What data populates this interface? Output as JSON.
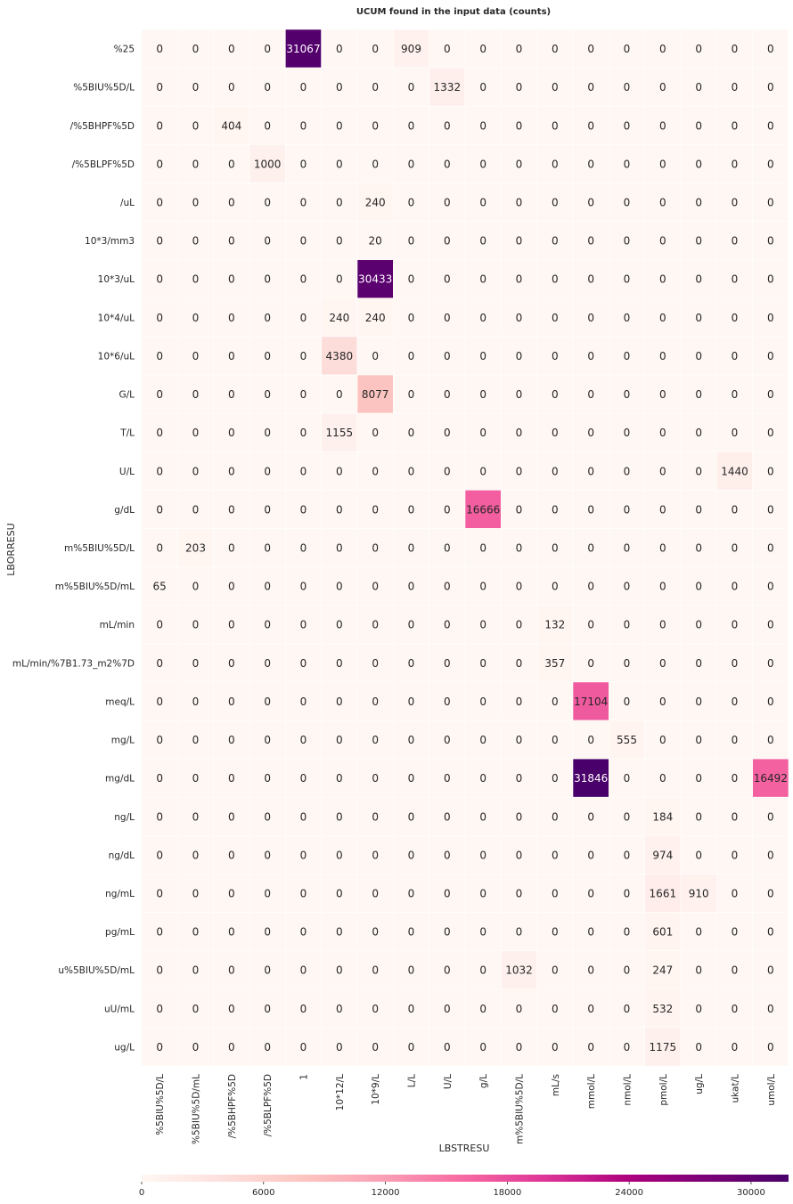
{
  "chart_data": {
    "type": "heatmap",
    "title": "UCUM found in the input data (counts)",
    "xlabel": "LBSTRESU",
    "ylabel": "LBORRESU",
    "x_categories": [
      "%5BIU%5D/L",
      "%5BIU%5D/mL",
      "/%5BHPF%5D",
      "/%5BLPF%5D",
      "1",
      "10*12/L",
      "10*9/L",
      "L/L",
      "U/L",
      "g/L",
      "m%5BIU%5D/L",
      "mL/s",
      "mmol/L",
      "nmol/L",
      "pmol/L",
      "ug/L",
      "ukat/L",
      "umol/L"
    ],
    "y_categories": [
      "%25",
      "%5BIU%5D/L",
      "/%5BHPF%5D",
      "/%5BLPF%5D",
      "/uL",
      "10*3/mm3",
      "10*3/uL",
      "10*4/uL",
      "10*6/uL",
      "G/L",
      "T/L",
      "U/L",
      "g/dL",
      "m%5BIU%5D/L",
      "m%5BIU%5D/mL",
      "mL/min",
      "mL/min/%7B1.73_m2%7D",
      "meq/L",
      "mg/L",
      "mg/dL",
      "ng/L",
      "ng/dL",
      "ng/mL",
      "pg/mL",
      "u%5BIU%5D/mL",
      "uU/mL",
      "ug/L"
    ],
    "values": [
      [
        0,
        0,
        0,
        0,
        31067,
        0,
        0,
        909,
        0,
        0,
        0,
        0,
        0,
        0,
        0,
        0,
        0,
        0
      ],
      [
        0,
        0,
        0,
        0,
        0,
        0,
        0,
        0,
        1332,
        0,
        0,
        0,
        0,
        0,
        0,
        0,
        0,
        0
      ],
      [
        0,
        0,
        404,
        0,
        0,
        0,
        0,
        0,
        0,
        0,
        0,
        0,
        0,
        0,
        0,
        0,
        0,
        0
      ],
      [
        0,
        0,
        0,
        1000,
        0,
        0,
        0,
        0,
        0,
        0,
        0,
        0,
        0,
        0,
        0,
        0,
        0,
        0
      ],
      [
        0,
        0,
        0,
        0,
        0,
        0,
        240,
        0,
        0,
        0,
        0,
        0,
        0,
        0,
        0,
        0,
        0,
        0
      ],
      [
        0,
        0,
        0,
        0,
        0,
        0,
        20,
        0,
        0,
        0,
        0,
        0,
        0,
        0,
        0,
        0,
        0,
        0
      ],
      [
        0,
        0,
        0,
        0,
        0,
        0,
        30433,
        0,
        0,
        0,
        0,
        0,
        0,
        0,
        0,
        0,
        0,
        0
      ],
      [
        0,
        0,
        0,
        0,
        0,
        240,
        240,
        0,
        0,
        0,
        0,
        0,
        0,
        0,
        0,
        0,
        0,
        0
      ],
      [
        0,
        0,
        0,
        0,
        0,
        4380,
        0,
        0,
        0,
        0,
        0,
        0,
        0,
        0,
        0,
        0,
        0,
        0
      ],
      [
        0,
        0,
        0,
        0,
        0,
        0,
        8077,
        0,
        0,
        0,
        0,
        0,
        0,
        0,
        0,
        0,
        0,
        0
      ],
      [
        0,
        0,
        0,
        0,
        0,
        1155,
        0,
        0,
        0,
        0,
        0,
        0,
        0,
        0,
        0,
        0,
        0,
        0
      ],
      [
        0,
        0,
        0,
        0,
        0,
        0,
        0,
        0,
        0,
        0,
        0,
        0,
        0,
        0,
        0,
        0,
        1440,
        0
      ],
      [
        0,
        0,
        0,
        0,
        0,
        0,
        0,
        0,
        0,
        16666,
        0,
        0,
        0,
        0,
        0,
        0,
        0,
        0
      ],
      [
        0,
        203,
        0,
        0,
        0,
        0,
        0,
        0,
        0,
        0,
        0,
        0,
        0,
        0,
        0,
        0,
        0,
        0
      ],
      [
        65,
        0,
        0,
        0,
        0,
        0,
        0,
        0,
        0,
        0,
        0,
        0,
        0,
        0,
        0,
        0,
        0,
        0
      ],
      [
        0,
        0,
        0,
        0,
        0,
        0,
        0,
        0,
        0,
        0,
        0,
        132,
        0,
        0,
        0,
        0,
        0,
        0
      ],
      [
        0,
        0,
        0,
        0,
        0,
        0,
        0,
        0,
        0,
        0,
        0,
        357,
        0,
        0,
        0,
        0,
        0,
        0
      ],
      [
        0,
        0,
        0,
        0,
        0,
        0,
        0,
        0,
        0,
        0,
        0,
        0,
        17104,
        0,
        0,
        0,
        0,
        0
      ],
      [
        0,
        0,
        0,
        0,
        0,
        0,
        0,
        0,
        0,
        0,
        0,
        0,
        0,
        555,
        0,
        0,
        0,
        0
      ],
      [
        0,
        0,
        0,
        0,
        0,
        0,
        0,
        0,
        0,
        0,
        0,
        0,
        31846,
        0,
        0,
        0,
        0,
        16492
      ],
      [
        0,
        0,
        0,
        0,
        0,
        0,
        0,
        0,
        0,
        0,
        0,
        0,
        0,
        0,
        184,
        0,
        0,
        0
      ],
      [
        0,
        0,
        0,
        0,
        0,
        0,
        0,
        0,
        0,
        0,
        0,
        0,
        0,
        0,
        974,
        0,
        0,
        0
      ],
      [
        0,
        0,
        0,
        0,
        0,
        0,
        0,
        0,
        0,
        0,
        0,
        0,
        0,
        0,
        1661,
        910,
        0,
        0
      ],
      [
        0,
        0,
        0,
        0,
        0,
        0,
        0,
        0,
        0,
        0,
        0,
        0,
        0,
        0,
        601,
        0,
        0,
        0
      ],
      [
        0,
        0,
        0,
        0,
        0,
        0,
        0,
        0,
        0,
        0,
        1032,
        0,
        0,
        0,
        247,
        0,
        0,
        0
      ],
      [
        0,
        0,
        0,
        0,
        0,
        0,
        0,
        0,
        0,
        0,
        0,
        0,
        0,
        0,
        532,
        0,
        0,
        0
      ],
      [
        0,
        0,
        0,
        0,
        0,
        0,
        0,
        0,
        0,
        0,
        0,
        0,
        0,
        0,
        1175,
        0,
        0,
        0
      ]
    ],
    "colorscale": [
      "#fff7f3",
      "#fde0dd",
      "#fcc5c0",
      "#fa9fb5",
      "#f768a1",
      "#dd3497",
      "#ae017e",
      "#7a0177",
      "#49006a"
    ],
    "color_range": [
      0,
      31846
    ],
    "colorbar_ticks": [
      "0",
      "6000",
      "12000",
      "18000",
      "24000",
      "30000"
    ],
    "colorbar_tick_values": [
      0,
      6000,
      12000,
      18000,
      24000,
      30000
    ],
    "colorbar_placement": "bottom",
    "grid": false
  }
}
